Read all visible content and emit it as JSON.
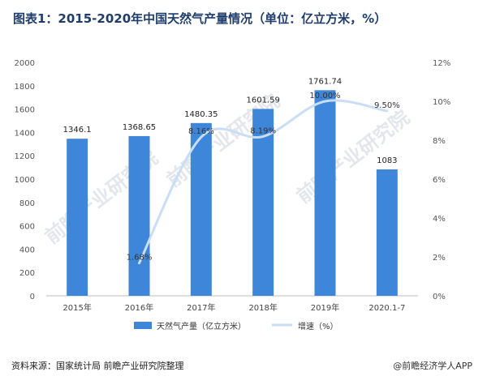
{
  "title": "图表1：2015-2020年中国天然气产量情况（单位：亿立方米，%）",
  "source": "资料来源：国家统计局 前瞻产业研究院整理",
  "brand": "@前瞻经济学人APP",
  "watermark": "前瞻产业研究院",
  "colors": {
    "bar": "#3e86d9",
    "line": "#c9def5",
    "title": "#1f3d6b"
  },
  "chart_data": {
    "type": "bar",
    "categories": [
      "2015年",
      "2016年",
      "2017年",
      "2018年",
      "2019年",
      "2020.1-7"
    ],
    "series": [
      {
        "name": "天然气产量（亿立方米）",
        "type": "bar",
        "axis": "left",
        "values": [
          1346.1,
          1368.65,
          1480.35,
          1601.59,
          1761.74,
          1083
        ],
        "labels": [
          "1346.1",
          "1368.65",
          "1480.35",
          "1601.59",
          "1761.74",
          "1083"
        ]
      },
      {
        "name": "增速（%）",
        "type": "line",
        "axis": "right",
        "values": [
          null,
          1.68,
          8.16,
          8.19,
          10.0,
          9.5
        ],
        "labels": [
          "",
          "1.68%",
          "8.16%",
          "8.19%",
          "10.00%",
          "9.50%"
        ]
      }
    ],
    "y_left": {
      "min": 0,
      "max": 2000,
      "step": 200
    },
    "y_right": {
      "min": 0,
      "max": 12,
      "step": 2,
      "suffix": "%"
    },
    "grid": false,
    "legend": "bottom"
  }
}
